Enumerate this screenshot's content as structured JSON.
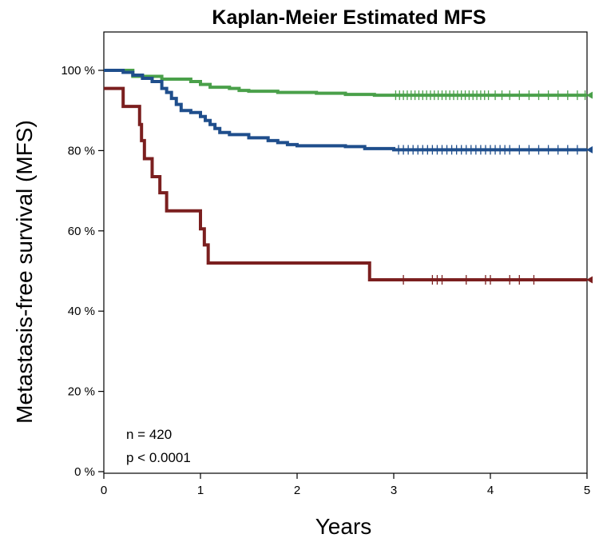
{
  "chart_data": {
    "type": "line",
    "title": "Kaplan-Meier Estimated MFS",
    "xlabel": "Years",
    "ylabel": "Metastasis-free survival (MFS)",
    "xlim": [
      0,
      5
    ],
    "ylim": [
      0,
      100
    ],
    "x_ticks": [
      "0",
      "1",
      "2",
      "3",
      "4",
      "5"
    ],
    "y_ticks": [
      "0 %",
      "20 %",
      "40 %",
      "60 %",
      "80 %",
      "100 %"
    ],
    "grid": false,
    "annotations": [
      "n = 420",
      "p < 0.0001"
    ],
    "series": [
      {
        "color": "#4aa04a",
        "step": true,
        "x": [
          0,
          0.3,
          0.6,
          0.9,
          1.0,
          1.1,
          1.3,
          1.4,
          1.5,
          1.8,
          2.2,
          2.5,
          2.8,
          3.0,
          5.0
        ],
        "y": [
          100,
          98.5,
          97.8,
          97.2,
          96.5,
          95.8,
          95.5,
          95.0,
          94.8,
          94.5,
          94.3,
          94.0,
          93.8,
          93.8,
          93.8
        ],
        "censor_x": [
          3.02,
          3.06,
          3.1,
          3.14,
          3.18,
          3.22,
          3.26,
          3.3,
          3.34,
          3.38,
          3.42,
          3.46,
          3.5,
          3.54,
          3.58,
          3.62,
          3.66,
          3.7,
          3.74,
          3.78,
          3.82,
          3.86,
          3.9,
          3.94,
          3.98,
          4.05,
          4.12,
          4.2,
          4.3,
          4.4,
          4.5,
          4.6,
          4.7,
          4.8,
          4.9,
          4.98
        ]
      },
      {
        "color": "#1f4e8c",
        "step": true,
        "x": [
          0,
          0.2,
          0.3,
          0.4,
          0.5,
          0.6,
          0.65,
          0.7,
          0.75,
          0.8,
          0.9,
          1.0,
          1.05,
          1.1,
          1.15,
          1.2,
          1.3,
          1.5,
          1.7,
          1.8,
          1.9,
          2.0,
          2.5,
          2.7,
          3.0,
          5.0
        ],
        "y": [
          100,
          99.5,
          98.8,
          98.0,
          97.2,
          95.5,
          94.5,
          93.0,
          91.5,
          90.0,
          89.5,
          88.5,
          87.5,
          86.5,
          85.5,
          84.5,
          84.0,
          83.2,
          82.5,
          82.0,
          81.5,
          81.2,
          81.0,
          80.5,
          80.2,
          80.2
        ],
        "censor_x": [
          3.05,
          3.1,
          3.15,
          3.2,
          3.25,
          3.3,
          3.35,
          3.4,
          3.45,
          3.5,
          3.55,
          3.6,
          3.65,
          3.7,
          3.75,
          3.8,
          3.85,
          3.9,
          3.95,
          4.0,
          4.05,
          4.1,
          4.15,
          4.2,
          4.3,
          4.4,
          4.5,
          4.6,
          4.7,
          4.8,
          4.9
        ]
      },
      {
        "color": "#7b1f1f",
        "step": true,
        "x": [
          0,
          0.2,
          0.37,
          0.39,
          0.42,
          0.5,
          0.58,
          0.65,
          1.0,
          1.04,
          1.08,
          2.75,
          5.0
        ],
        "y": [
          95.5,
          91.0,
          86.5,
          82.5,
          78.0,
          73.5,
          69.5,
          65.0,
          60.5,
          56.5,
          52.0,
          47.8,
          47.8
        ],
        "censor_x": [
          3.1,
          3.4,
          3.45,
          3.5,
          3.75,
          3.95,
          4.0,
          4.2,
          4.3,
          4.45
        ]
      }
    ]
  }
}
